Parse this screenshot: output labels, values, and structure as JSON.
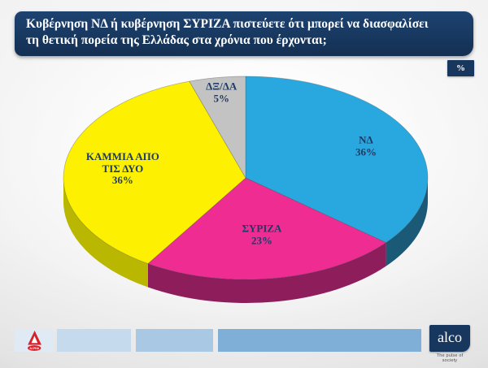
{
  "title": {
    "text": "Κυβέρνηση ΝΔ ή κυβέρνηση ΣΥΡΙΖΑ πιστεύετε ότι μπορεί να διασφαλίσει\nτη θετική πορεία της Ελλάδας στα χρόνια που έρχονται;"
  },
  "unit_badge": "%",
  "chart_data": {
    "type": "pie",
    "style": "3d",
    "start_angle_deg": 0,
    "direction": "clockwise",
    "title": "",
    "slices": [
      {
        "label": "ΝΔ",
        "value": 36,
        "color": "#29a8e0",
        "side_color": "#1a5a77"
      },
      {
        "label": "ΣΥΡΙΖΑ",
        "value": 23,
        "color": "#ee2c92",
        "side_color": "#8e1d5c"
      },
      {
        "label": "ΚΑΜΜΙΑ ΑΠΟ ΤΙΣ ΔΥΟ",
        "value": 36,
        "color": "#fdf101",
        "side_color": "#b9b700"
      },
      {
        "label": "ΔΞ/ΔΑ",
        "value": 5,
        "color": "#c3c3c3",
        "side_color": "#8f8f8f"
      }
    ],
    "label_color": "#1e3a66",
    "legend": "none"
  },
  "colors": {
    "navy": "#17375e",
    "footer_bar_shades": [
      "#e0eaf5",
      "#c6daee",
      "#a9c8e4",
      "#7fafd6"
    ],
    "tv_logo_red": "#d6232a"
  },
  "footer": {
    "alco_logo_text": "alco",
    "alco_tagline": "The pulse of society"
  }
}
